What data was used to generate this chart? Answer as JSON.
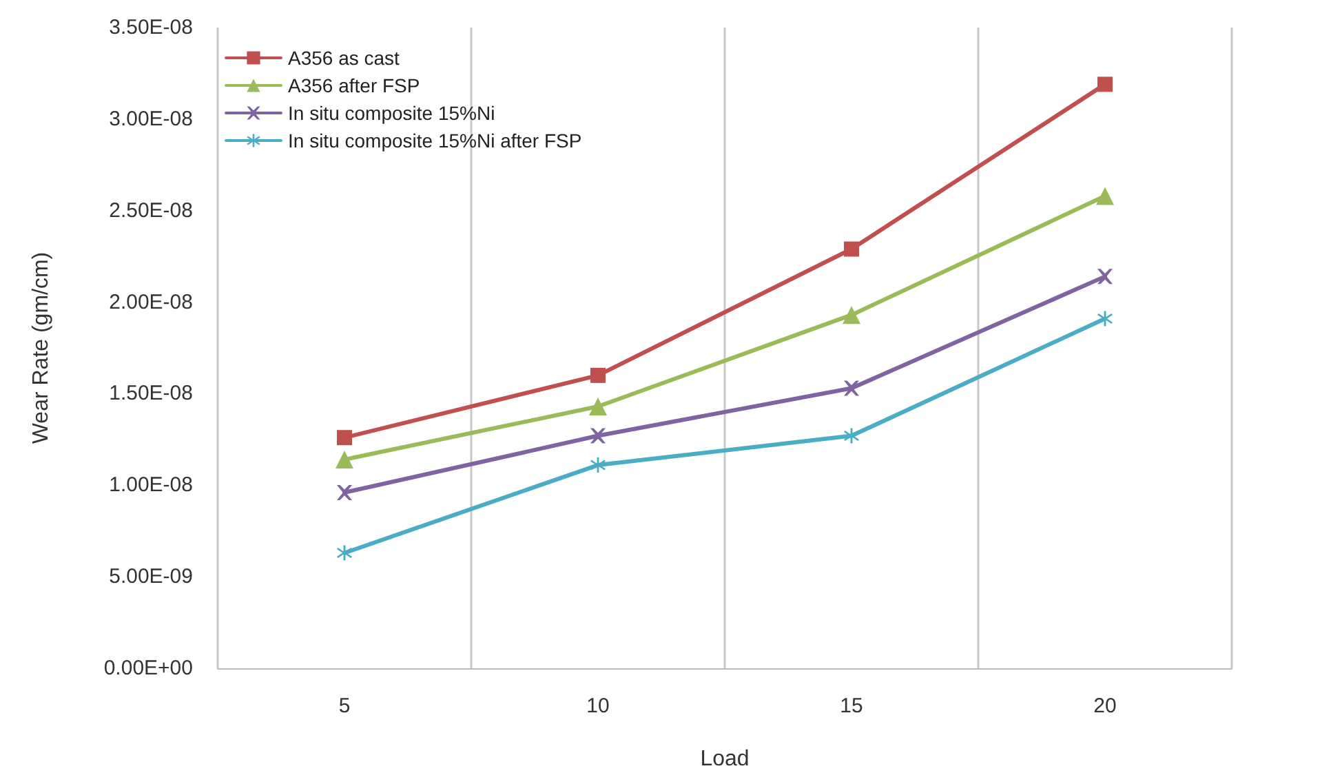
{
  "chart_data": {
    "type": "line",
    "xlabel": "Load",
    "ylabel": "Wear Rate (gm/cm)",
    "categories": [
      "5",
      "10",
      "15",
      "20"
    ],
    "series": [
      {
        "name": "A356 as cast",
        "color": "#c0504d",
        "marker": "square",
        "values": [
          1.26e-08,
          1.6e-08,
          2.29e-08,
          3.19e-08
        ]
      },
      {
        "name": "A356 after FSP",
        "color": "#9bbb59",
        "marker": "triangle",
        "values": [
          1.14e-08,
          1.43e-08,
          1.93e-08,
          2.58e-08
        ]
      },
      {
        "name": "In situ composite 15%Ni",
        "color": "#8064a2",
        "marker": "cross",
        "values": [
          9.6e-09,
          1.27e-08,
          1.53e-08,
          2.14e-08
        ]
      },
      {
        "name": "In situ composite 15%Ni after FSP",
        "color": "#4bacc6",
        "marker": "star",
        "values": [
          6.3e-09,
          1.11e-08,
          1.27e-08,
          1.91e-08
        ]
      }
    ],
    "ylim": [
      0,
      3.5e-08
    ],
    "yticks": [
      {
        "value": 0,
        "label": "0.00E+00"
      },
      {
        "value": 5e-09,
        "label": "5.00E-09"
      },
      {
        "value": 1e-08,
        "label": "1.00E-08"
      },
      {
        "value": 1.5e-08,
        "label": "1.50E-08"
      },
      {
        "value": 2e-08,
        "label": "2.00E-08"
      },
      {
        "value": 2.5e-08,
        "label": "2.50E-08"
      },
      {
        "value": 3e-08,
        "label": "3.00E-08"
      },
      {
        "value": 3.5e-08,
        "label": "3.50E-08"
      }
    ],
    "grid": "x",
    "legend": "top left",
    "line_style": "solid"
  }
}
